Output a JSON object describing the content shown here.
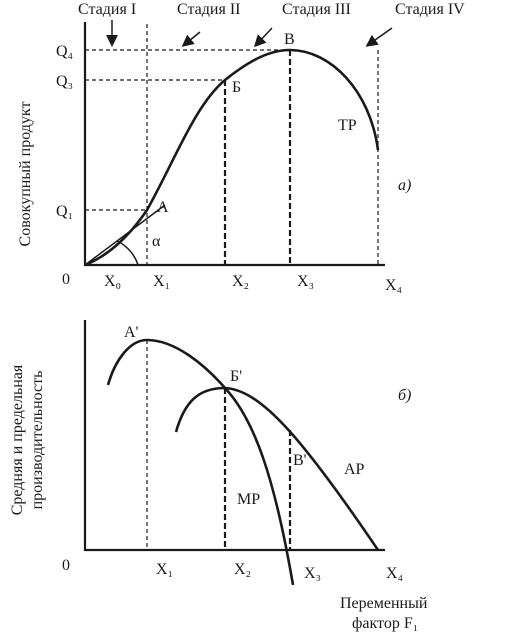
{
  "stages": [
    "Стадия I",
    "Стадия II",
    "Стадия III",
    "Стадия IV"
  ],
  "top": {
    "y_label": "Совокупный продукт",
    "panel_label": "а)",
    "origin": "0",
    "q_labels": [
      "Q₄",
      "Q₃",
      "Q₁"
    ],
    "x_labels": [
      "X₀",
      "X₁",
      "X₂",
      "X₃",
      "X₄"
    ],
    "points": [
      "А",
      "Б",
      "В"
    ],
    "curve_label": "ТР",
    "angle": "α"
  },
  "bottom": {
    "y_label": [
      "Средняя и предельная",
      "производительность"
    ],
    "panel_label": "б)",
    "origin": "0",
    "x_labels": [
      "X₁",
      "X₂",
      "X₃",
      "X₄"
    ],
    "points": [
      "А'",
      "Б'",
      "В'"
    ],
    "curve_labels": [
      "МР",
      "АР"
    ],
    "x_axis_label": [
      "Переменный",
      "фактор F₁"
    ]
  }
}
